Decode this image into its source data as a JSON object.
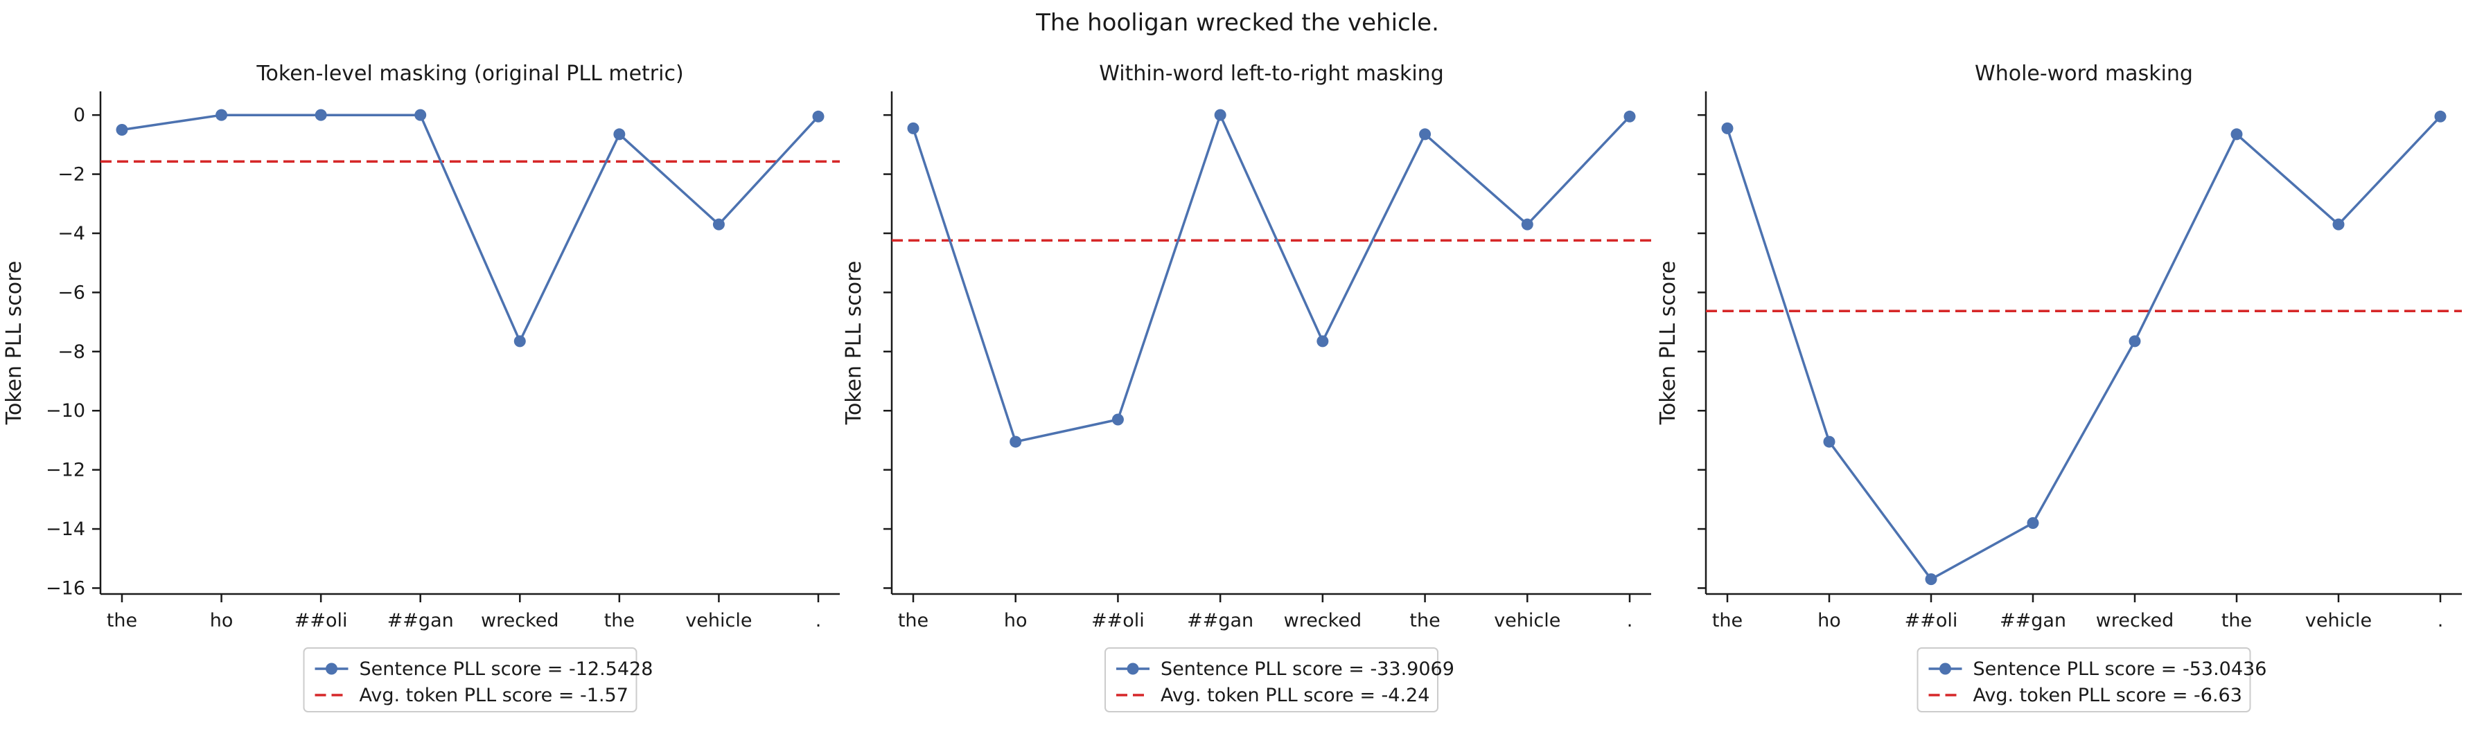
{
  "figure_title": "The hooligan wrecked the vehicle.",
  "colors": {
    "series": "#4c72b0",
    "average": "#d62728"
  },
  "chart_data": [
    {
      "type": "line",
      "title": "Token-level masking (original PLL metric)",
      "ylabel": "Token PLL score",
      "xlabel": "",
      "categories": [
        "the",
        "ho",
        "##oli",
        "##gan",
        "wrecked",
        "the",
        "vehicle",
        "."
      ],
      "series": [
        {
          "name": "Sentence PLL score = -12.5428",
          "values": [
            -0.5,
            0.0,
            0.0,
            0.0,
            -7.65,
            -0.65,
            -3.7,
            -0.05
          ]
        }
      ],
      "average_line": {
        "name": "Avg. token PLL score = -1.57",
        "value": -1.57
      },
      "ylim": [
        -16.2,
        0.8
      ],
      "yticks": [
        0,
        -2,
        -4,
        -6,
        -8,
        -10,
        -12,
        -14,
        -16
      ],
      "ytick_labels": [
        "0",
        "−2",
        "−4",
        "−6",
        "−8",
        "−10",
        "−12",
        "−14",
        "−16"
      ],
      "legend_position": "below"
    },
    {
      "type": "line",
      "title": "Within-word left-to-right masking",
      "ylabel": "Token PLL score",
      "xlabel": "",
      "categories": [
        "the",
        "ho",
        "##oli",
        "##gan",
        "wrecked",
        "the",
        "vehicle",
        "."
      ],
      "series": [
        {
          "name": "Sentence PLL score = -33.9069",
          "values": [
            -0.45,
            -11.05,
            -10.3,
            0.0,
            -7.65,
            -0.65,
            -3.7,
            -0.05
          ]
        }
      ],
      "average_line": {
        "name": "Avg. token PLL score = -4.24",
        "value": -4.24
      },
      "ylim": [
        -16.2,
        0.8
      ],
      "yticks": [
        0,
        -2,
        -4,
        -6,
        -8,
        -10,
        -12,
        -14,
        -16
      ],
      "ytick_labels": [],
      "legend_position": "below"
    },
    {
      "type": "line",
      "title": "Whole-word masking",
      "ylabel": "Token PLL score",
      "xlabel": "",
      "categories": [
        "the",
        "ho",
        "##oli",
        "##gan",
        "wrecked",
        "the",
        "vehicle",
        "."
      ],
      "series": [
        {
          "name": "Sentence PLL score = -53.0436",
          "values": [
            -0.45,
            -11.05,
            -15.7,
            -13.8,
            -7.65,
            -0.65,
            -3.7,
            -0.05
          ]
        }
      ],
      "average_line": {
        "name": "Avg. token PLL score = -6.63",
        "value": -6.63
      },
      "ylim": [
        -16.2,
        0.8
      ],
      "yticks": [
        0,
        -2,
        -4,
        -6,
        -8,
        -10,
        -12,
        -14,
        -16
      ],
      "ytick_labels": [],
      "legend_position": "below"
    }
  ]
}
